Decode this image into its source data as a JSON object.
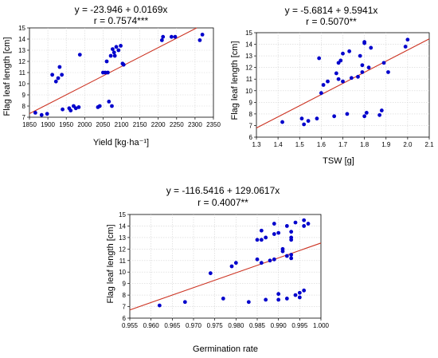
{
  "chart_data": [
    {
      "type": "scatter",
      "title_line1": "y = -23.946 + 0.0169x",
      "title_line2": "r = 0.7574***",
      "xlabel": "Yield [kg·ha⁻¹]",
      "ylabel": "Flag leaf length [cm]",
      "xlim": [
        1850,
        2350
      ],
      "ylim": [
        7,
        15
      ],
      "xticks": [
        1850,
        1900,
        1950,
        2000,
        2050,
        2100,
        2150,
        2200,
        2250,
        2300,
        2350
      ],
      "xtick_labels": [
        "1850",
        "1900",
        "1950",
        "2000",
        "2050",
        "2100",
        "2150",
        "2200",
        "2250",
        "2300",
        "2350"
      ],
      "yticks": [
        7,
        8,
        9,
        10,
        11,
        12,
        13,
        14,
        15
      ],
      "grid": true,
      "fit": {
        "intercept": -23.946,
        "slope": 0.0169
      },
      "point_color": "#0000cc",
      "line_color": "#cc3322",
      "points": [
        [
          1866,
          7.4
        ],
        [
          1883,
          7.2
        ],
        [
          1898,
          7.3
        ],
        [
          1912,
          10.8
        ],
        [
          1922,
          10.2
        ],
        [
          1928,
          10.5
        ],
        [
          1932,
          11.5
        ],
        [
          1938,
          10.8
        ],
        [
          1940,
          7.7
        ],
        [
          1958,
          7.8
        ],
        [
          1962,
          7.6
        ],
        [
          1970,
          8.0
        ],
        [
          1976,
          7.8
        ],
        [
          1984,
          7.9
        ],
        [
          1987,
          12.6
        ],
        [
          2036,
          7.9
        ],
        [
          2041,
          8.0
        ],
        [
          2050,
          11.0
        ],
        [
          2056,
          11.0
        ],
        [
          2060,
          12.0
        ],
        [
          2063,
          11.0
        ],
        [
          2066,
          8.4
        ],
        [
          2071,
          12.5
        ],
        [
          2074,
          8.0
        ],
        [
          2076,
          13.1
        ],
        [
          2080,
          12.8
        ],
        [
          2082,
          12.5
        ],
        [
          2086,
          13.3
        ],
        [
          2092,
          13.0
        ],
        [
          2098,
          13.4
        ],
        [
          2103,
          11.8
        ],
        [
          2106,
          11.7
        ],
        [
          2210,
          13.9
        ],
        [
          2213,
          14.2
        ],
        [
          2236,
          14.2
        ],
        [
          2246,
          14.2
        ],
        [
          2313,
          13.9
        ],
        [
          2320,
          14.4
        ]
      ]
    },
    {
      "type": "scatter",
      "title_line1": "y = -5.6814 + 9.5941x",
      "title_line2": "r = 0.5070**",
      "xlabel": "TSW [g]",
      "ylabel": "Flag leaf length [cm]",
      "xlim": [
        1.3,
        2.1
      ],
      "ylim": [
        6,
        15
      ],
      "xticks": [
        1.3,
        1.4,
        1.5,
        1.6,
        1.7,
        1.8,
        1.9,
        2.0,
        2.1
      ],
      "xtick_labels": [
        "1.3",
        "1.4",
        "1.5",
        "1.6",
        "1.7",
        "1.8",
        "1.9",
        "2.0",
        "2.1"
      ],
      "yticks": [
        6,
        7,
        8,
        9,
        10,
        11,
        12,
        13,
        14,
        15
      ],
      "grid": true,
      "fit": {
        "intercept": -5.6814,
        "slope": 9.5941
      },
      "point_color": "#0000cc",
      "line_color": "#cc3322",
      "points": [
        [
          1.42,
          7.3
        ],
        [
          1.51,
          7.6
        ],
        [
          1.52,
          7.1
        ],
        [
          1.54,
          7.4
        ],
        [
          1.58,
          7.6
        ],
        [
          1.59,
          12.8
        ],
        [
          1.6,
          9.8
        ],
        [
          1.61,
          10.5
        ],
        [
          1.63,
          10.8
        ],
        [
          1.66,
          7.8
        ],
        [
          1.67,
          11.5
        ],
        [
          1.68,
          12.4
        ],
        [
          1.68,
          11.0
        ],
        [
          1.69,
          12.6
        ],
        [
          1.7,
          13.2
        ],
        [
          1.7,
          10.8
        ],
        [
          1.72,
          8.0
        ],
        [
          1.73,
          13.4
        ],
        [
          1.74,
          11.1
        ],
        [
          1.77,
          11.2
        ],
        [
          1.78,
          13.0
        ],
        [
          1.79,
          12.2
        ],
        [
          1.79,
          11.6
        ],
        [
          1.8,
          14.2
        ],
        [
          1.8,
          14.1
        ],
        [
          1.8,
          7.8
        ],
        [
          1.81,
          8.1
        ],
        [
          1.82,
          12.0
        ],
        [
          1.83,
          13.7
        ],
        [
          1.87,
          7.9
        ],
        [
          1.88,
          8.3
        ],
        [
          1.89,
          12.4
        ],
        [
          1.91,
          11.6
        ],
        [
          1.99,
          13.8
        ],
        [
          2.0,
          14.4
        ]
      ]
    },
    {
      "type": "scatter",
      "title_line1": "y = -116.5416 + 129.0617x",
      "title_line2": "r = 0.4007**",
      "xlabel": "Germination rate",
      "ylabel": "Flag leaf length [cm]",
      "xlim": [
        0.955,
        1.0
      ],
      "ylim": [
        6,
        15
      ],
      "xticks": [
        0.955,
        0.96,
        0.965,
        0.97,
        0.975,
        0.98,
        0.985,
        0.99,
        0.995,
        1.0
      ],
      "xtick_labels": [
        "0.955",
        "0.960",
        "0.965",
        "0.970",
        "0.975",
        "0.980",
        "0.985",
        "0.990",
        "0.995",
        "1.000"
      ],
      "yticks": [
        6,
        7,
        8,
        9,
        10,
        11,
        12,
        13,
        14,
        15
      ],
      "grid": true,
      "fit": {
        "intercept": -116.5416,
        "slope": 129.0617
      },
      "point_color": "#0000cc",
      "line_color": "#cc3322",
      "points": [
        [
          0.962,
          7.1
        ],
        [
          0.968,
          7.4
        ],
        [
          0.974,
          9.9
        ],
        [
          0.977,
          7.7
        ],
        [
          0.979,
          10.5
        ],
        [
          0.98,
          10.8
        ],
        [
          0.983,
          7.4
        ],
        [
          0.985,
          11.1
        ],
        [
          0.985,
          12.8
        ],
        [
          0.986,
          10.8
        ],
        [
          0.986,
          13.6
        ],
        [
          0.986,
          12.8
        ],
        [
          0.987,
          13.0
        ],
        [
          0.987,
          7.6
        ],
        [
          0.988,
          11.0
        ],
        [
          0.989,
          14.2
        ],
        [
          0.989,
          13.3
        ],
        [
          0.989,
          11.1
        ],
        [
          0.99,
          13.4
        ],
        [
          0.99,
          8.1
        ],
        [
          0.99,
          7.6
        ],
        [
          0.991,
          11.8
        ],
        [
          0.991,
          12.0
        ],
        [
          0.992,
          14.0
        ],
        [
          0.992,
          7.7
        ],
        [
          0.992,
          11.4
        ],
        [
          0.993,
          11.2
        ],
        [
          0.993,
          13.0
        ],
        [
          0.993,
          13.5
        ],
        [
          0.993,
          12.8
        ],
        [
          0.993,
          11.5
        ],
        [
          0.994,
          14.3
        ],
        [
          0.994,
          8.0
        ],
        [
          0.995,
          7.8
        ],
        [
          0.995,
          8.2
        ],
        [
          0.996,
          14.5
        ],
        [
          0.996,
          14.0
        ],
        [
          0.996,
          8.4
        ],
        [
          0.997,
          14.2
        ]
      ]
    }
  ]
}
